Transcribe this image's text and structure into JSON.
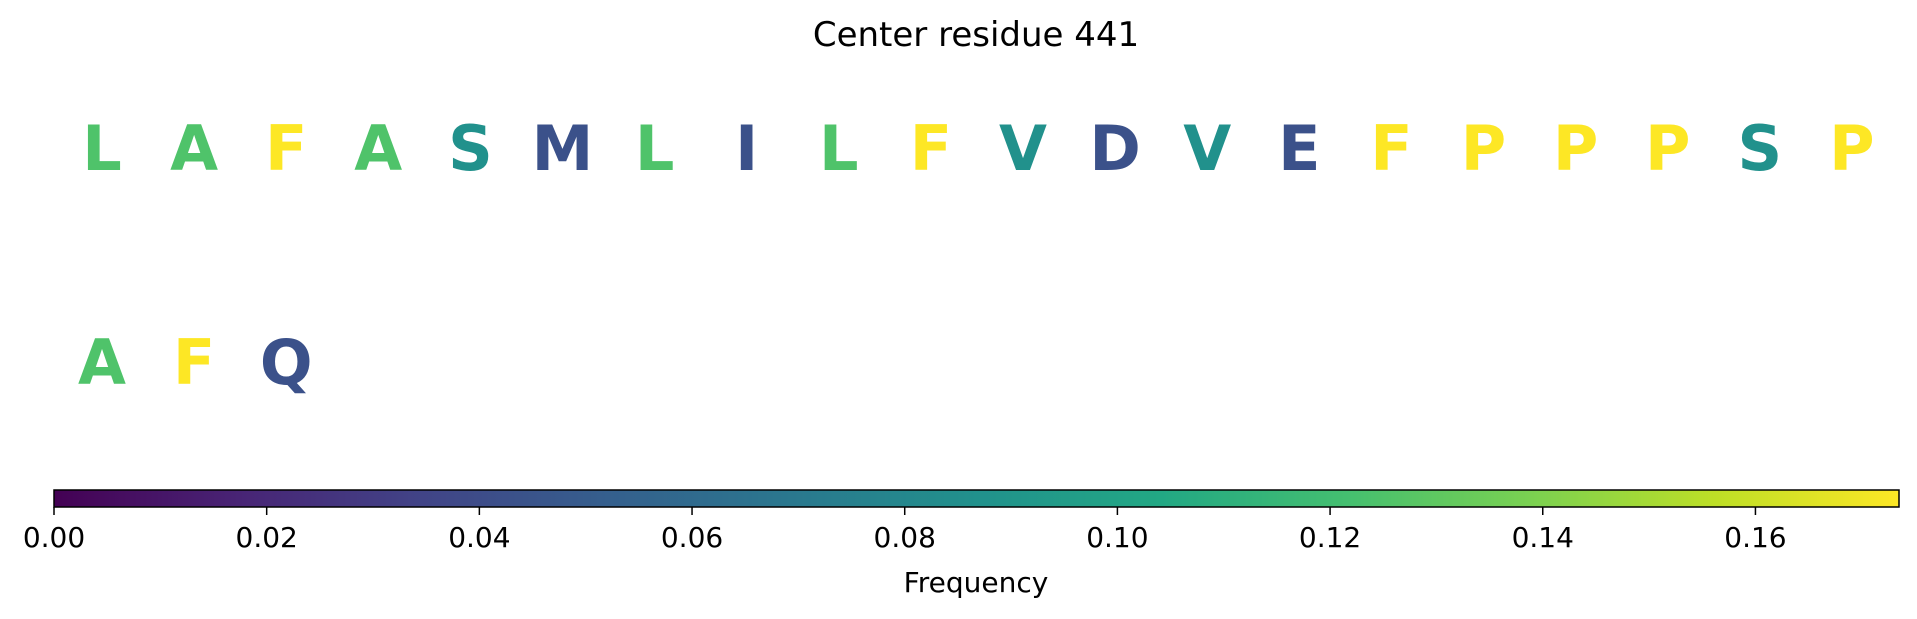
{
  "chart_data": {
    "type": "heatmap",
    "title": "Center residue 441",
    "residues": [
      {
        "letter": "L",
        "frequency": 0.125
      },
      {
        "letter": "A",
        "frequency": 0.125
      },
      {
        "letter": "F",
        "frequency": 0.1735
      },
      {
        "letter": "A",
        "frequency": 0.125
      },
      {
        "letter": "S",
        "frequency": 0.087
      },
      {
        "letter": "M",
        "frequency": 0.043
      },
      {
        "letter": "L",
        "frequency": 0.125
      },
      {
        "letter": "I",
        "frequency": 0.043
      },
      {
        "letter": "L",
        "frequency": 0.125
      },
      {
        "letter": "F",
        "frequency": 0.1735
      },
      {
        "letter": "V",
        "frequency": 0.087
      },
      {
        "letter": "D",
        "frequency": 0.043
      },
      {
        "letter": "V",
        "frequency": 0.087
      },
      {
        "letter": "E",
        "frequency": 0.043
      },
      {
        "letter": "F",
        "frequency": 0.1735
      },
      {
        "letter": "P",
        "frequency": 0.1735
      },
      {
        "letter": "P",
        "frequency": 0.1735
      },
      {
        "letter": "P",
        "frequency": 0.1735
      },
      {
        "letter": "S",
        "frequency": 0.087
      },
      {
        "letter": "P",
        "frequency": 0.1735
      },
      {
        "letter": "A",
        "frequency": 0.125
      },
      {
        "letter": "F",
        "frequency": 0.1735
      },
      {
        "letter": "Q",
        "frequency": 0.043
      }
    ],
    "residues_per_row": 20,
    "colorbar": {
      "label": "Frequency",
      "range": [
        0,
        0.1735
      ],
      "ticks": [
        0.0,
        0.02,
        0.04,
        0.06,
        0.08,
        0.1,
        0.12,
        0.14,
        0.16
      ],
      "tick_labels": [
        "0.00",
        "0.02",
        "0.04",
        "0.06",
        "0.08",
        "0.10",
        "0.12",
        "0.14",
        "0.16"
      ],
      "colormap": "viridis"
    }
  }
}
